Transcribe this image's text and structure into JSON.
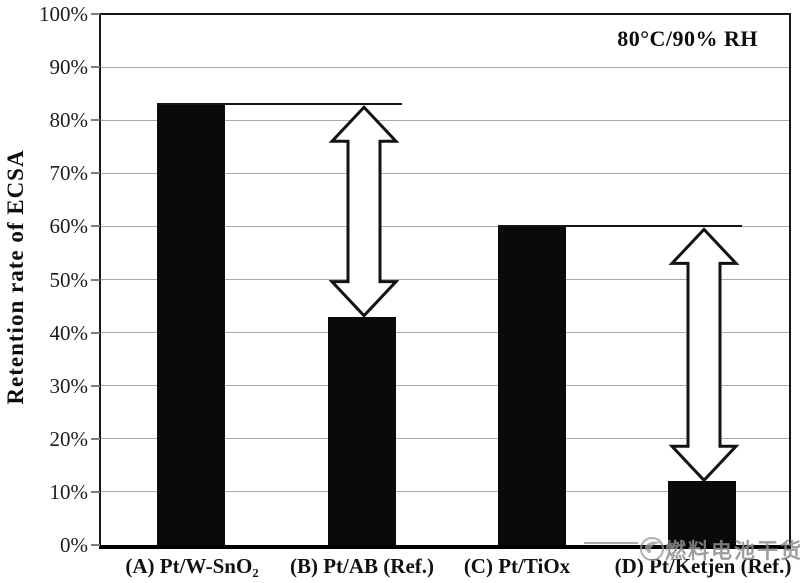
{
  "chart_data": {
    "type": "bar",
    "title": "",
    "annotation": "80°C/90% RH",
    "ylabel": "Retention rate of ECSA",
    "xlabel": "",
    "categories": [
      "(A) Pt/W-SnO₂",
      "(B) Pt/AB (Ref.)",
      "(C) Pt/TiOx",
      "(D) Pt/Ketjen (Ref.)"
    ],
    "values": [
      83,
      43,
      60,
      12
    ],
    "value_unit": "%",
    "ylim": [
      0,
      100
    ],
    "ytick_interval": 10,
    "ytick_labels": [
      "0%",
      "10%",
      "20%",
      "30%",
      "40%",
      "50%",
      "60%",
      "70%",
      "80%",
      "90%",
      "100%"
    ],
    "grid": true,
    "bar_color": "#0a0a0a",
    "reference_lines": [
      {
        "level": 83,
        "from_category": 0,
        "to_category": 1
      },
      {
        "level": 60,
        "from_category": 2,
        "to_category": 3
      }
    ],
    "difference_arrows": [
      {
        "at_category": 1,
        "from": 83,
        "to": 43
      },
      {
        "at_category": 3,
        "from": 60,
        "to": 12
      }
    ]
  },
  "watermark": {
    "text": "燃料电池干货",
    "icon": "swirl-logo-icon",
    "color": "#8d8d8d"
  }
}
